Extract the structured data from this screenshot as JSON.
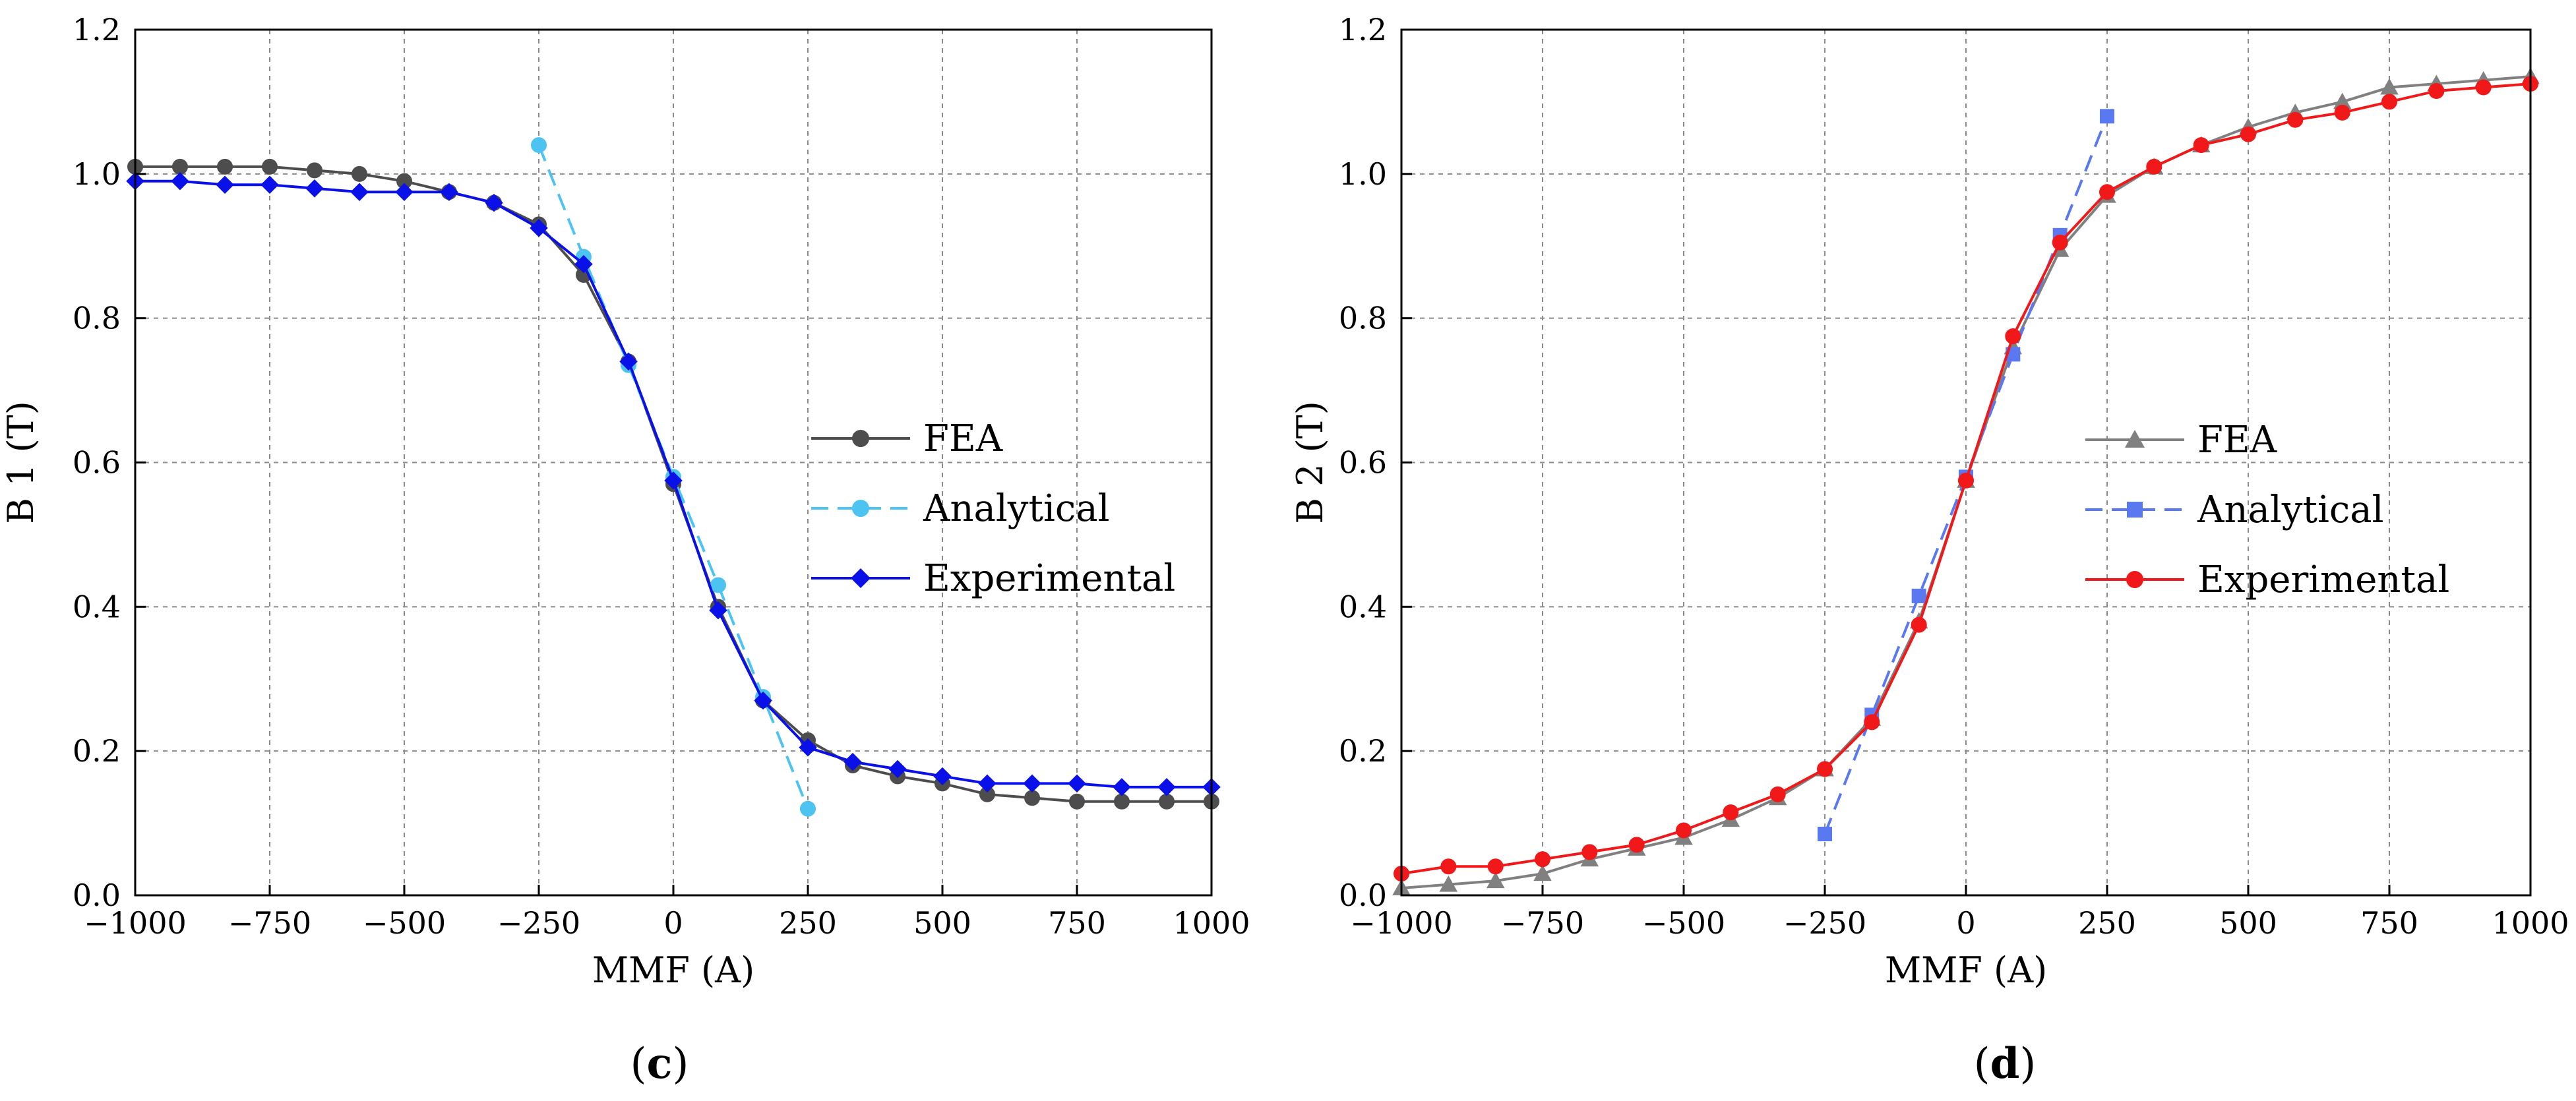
{
  "chart_data": [
    {
      "type": "line",
      "panel_label": {
        "open": "(",
        "letter": "c",
        "close": ")"
      },
      "xlabel": "MMF (A)",
      "ylabel": "B 1 (T)",
      "xlim": [
        -1000,
        1000
      ],
      "ylim": [
        0,
        1.2
      ],
      "xticks": [
        -1000,
        -750,
        -500,
        -250,
        0,
        250,
        500,
        750,
        1000
      ],
      "xtick_labels": [
        "−1000",
        "−750",
        "−500",
        "−250",
        "0",
        "250",
        "500",
        "750",
        "1000"
      ],
      "yticks": [
        0.0,
        0.2,
        0.4,
        0.6,
        0.8,
        1.0,
        1.2
      ],
      "ytick_labels": [
        "0.0",
        "0.2",
        "0.4",
        "0.6",
        "0.8",
        "1.0",
        "1.2"
      ],
      "grid": true,
      "legend_position": "center-right",
      "series": [
        {
          "name": "FEA",
          "color": "#4d4d4d",
          "marker": "circle",
          "dash": "solid",
          "x": [
            -1000,
            -916.7,
            -833.3,
            -750,
            -666.7,
            -583.3,
            -500,
            -416.7,
            -333.3,
            -250,
            -166.7,
            -83.3,
            0,
            83.3,
            166.7,
            250,
            333.3,
            416.7,
            500,
            583.3,
            666.7,
            750,
            833.3,
            916.7,
            1000
          ],
          "y": [
            1.01,
            1.01,
            1.01,
            1.01,
            1.005,
            1.0,
            0.99,
            0.975,
            0.96,
            0.93,
            0.86,
            0.74,
            0.57,
            0.4,
            0.27,
            0.215,
            0.18,
            0.165,
            0.155,
            0.14,
            0.135,
            0.13,
            0.13,
            0.13,
            0.13
          ]
        },
        {
          "name": "Analytical",
          "color": "#4cc3f0",
          "marker": "circle",
          "dash": "dashed",
          "x": [
            -250,
            -166.7,
            -83.3,
            0,
            83.3,
            166.7,
            250
          ],
          "y": [
            1.04,
            0.885,
            0.735,
            0.58,
            0.43,
            0.275,
            0.12
          ]
        },
        {
          "name": "Experimental",
          "color": "#0a10e8",
          "marker": "diamond",
          "dash": "solid",
          "x": [
            -1000,
            -916.7,
            -833.3,
            -750,
            -666.7,
            -583.3,
            -500,
            -416.7,
            -333.3,
            -250,
            -166.7,
            -83.3,
            0,
            83.3,
            166.7,
            250,
            333.3,
            416.7,
            500,
            583.3,
            666.7,
            750,
            833.3,
            916.7,
            1000
          ],
          "y": [
            0.99,
            0.99,
            0.985,
            0.985,
            0.98,
            0.975,
            0.975,
            0.975,
            0.96,
            0.925,
            0.875,
            0.74,
            0.575,
            0.395,
            0.27,
            0.205,
            0.185,
            0.175,
            0.165,
            0.155,
            0.155,
            0.155,
            0.15,
            0.15,
            0.15
          ]
        }
      ]
    },
    {
      "type": "line",
      "panel_label": {
        "open": "(",
        "letter": "d",
        "close": ")"
      },
      "xlabel": "MMF (A)",
      "ylabel": "B 2 (T)",
      "xlim": [
        -1000,
        1000
      ],
      "ylim": [
        0,
        1.2
      ],
      "xticks": [
        -1000,
        -750,
        -500,
        -250,
        0,
        250,
        500,
        750,
        1000
      ],
      "xtick_labels": [
        "−1000",
        "−750",
        "−500",
        "−250",
        "0",
        "250",
        "500",
        "750",
        "1000"
      ],
      "yticks": [
        0.0,
        0.2,
        0.4,
        0.6,
        0.8,
        1.0,
        1.2
      ],
      "ytick_labels": [
        "0.0",
        "0.2",
        "0.4",
        "0.6",
        "0.8",
        "1.0",
        "1.2"
      ],
      "grid": true,
      "legend_position": "center-right",
      "series": [
        {
          "name": "FEA",
          "color": "#808080",
          "marker": "triangle",
          "dash": "solid",
          "x": [
            -1000,
            -916.7,
            -833.3,
            -750,
            -666.7,
            -583.3,
            -500,
            -416.7,
            -333.3,
            -250,
            -166.7,
            -83.3,
            0,
            83.3,
            166.7,
            250,
            333.3,
            416.7,
            500,
            583.3,
            666.7,
            750,
            833.3,
            916.7,
            1000
          ],
          "y": [
            0.01,
            0.015,
            0.02,
            0.03,
            0.05,
            0.065,
            0.08,
            0.105,
            0.135,
            0.175,
            0.245,
            0.38,
            0.575,
            0.76,
            0.895,
            0.97,
            1.01,
            1.04,
            1.065,
            1.085,
            1.1,
            1.12,
            1.125,
            1.13,
            1.135
          ]
        },
        {
          "name": "Analytical",
          "color": "#5a78f0",
          "marker": "square",
          "dash": "dashed",
          "x": [
            -250,
            -166.7,
            -83.3,
            0,
            83.3,
            166.7,
            250
          ],
          "y": [
            0.085,
            0.25,
            0.415,
            0.58,
            0.75,
            0.915,
            1.08
          ]
        },
        {
          "name": "Experimental",
          "color": "#f01818",
          "marker": "circle",
          "dash": "solid",
          "x": [
            -1000,
            -916.7,
            -833.3,
            -750,
            -666.7,
            -583.3,
            -500,
            -416.7,
            -333.3,
            -250,
            -166.7,
            -83.3,
            0,
            83.3,
            166.7,
            250,
            333.3,
            416.7,
            500,
            583.3,
            666.7,
            750,
            833.3,
            916.7,
            1000
          ],
          "y": [
            0.03,
            0.04,
            0.04,
            0.05,
            0.06,
            0.07,
            0.09,
            0.115,
            0.14,
            0.175,
            0.24,
            0.375,
            0.575,
            0.775,
            0.905,
            0.975,
            1.01,
            1.04,
            1.055,
            1.075,
            1.085,
            1.1,
            1.115,
            1.12,
            1.125
          ]
        }
      ]
    }
  ]
}
